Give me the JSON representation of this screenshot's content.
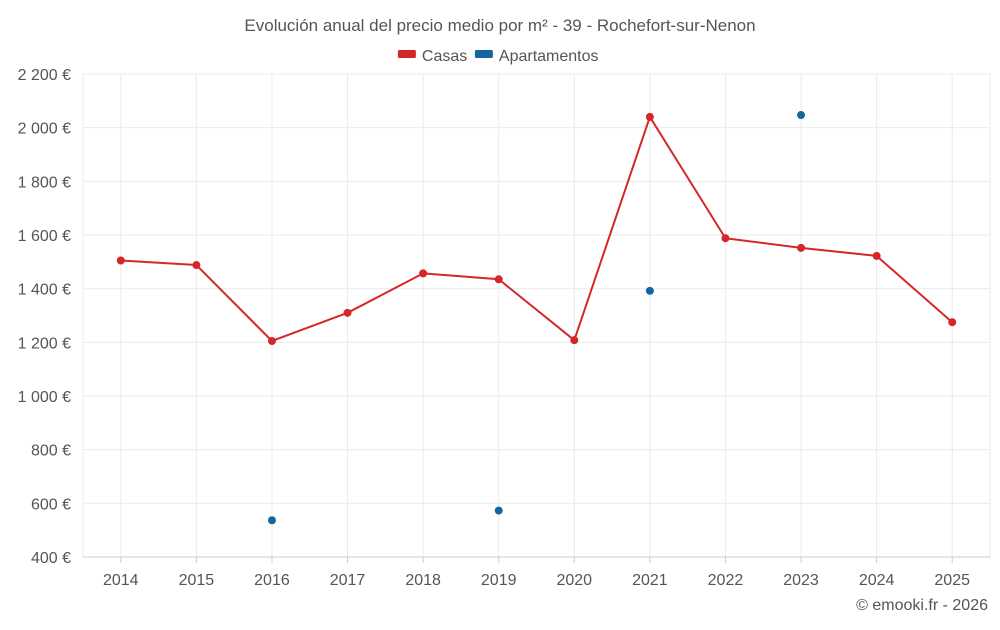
{
  "chart_data": {
    "type": "line",
    "title": "Evolución anual del precio medio por m² - 39 - Rochefort-sur-Nenon",
    "categories": [
      "2014",
      "2015",
      "2016",
      "2017",
      "2018",
      "2019",
      "2020",
      "2021",
      "2022",
      "2023",
      "2024",
      "2025"
    ],
    "series": [
      {
        "name": "Casas",
        "color": "#d62728",
        "mode": "line+markers",
        "values": [
          1505,
          1488,
          1205,
          1310,
          1457,
          1435,
          1208,
          2040,
          1588,
          1552,
          1522,
          1275
        ]
      },
      {
        "name": "Apartamentos",
        "color": "#1565a0",
        "mode": "markers",
        "values": [
          null,
          null,
          537,
          null,
          null,
          573,
          null,
          1392,
          null,
          2047,
          null,
          null
        ]
      }
    ],
    "y_ticks": [
      400,
      600,
      800,
      1000,
      1200,
      1400,
      1600,
      1800,
      2000,
      2200
    ],
    "y_tick_labels": [
      "400 €",
      "600 €",
      "800 €",
      "1 000 €",
      "1 200 €",
      "1 400 €",
      "1 600 €",
      "1 800 €",
      "2 000 €",
      "2 200 €"
    ],
    "ylim": [
      400,
      2200
    ],
    "xlabel": "",
    "ylabel": "",
    "grid": true,
    "legend_position": "top-center"
  },
  "footer": {
    "credit": "© emooki.fr - 2026"
  }
}
